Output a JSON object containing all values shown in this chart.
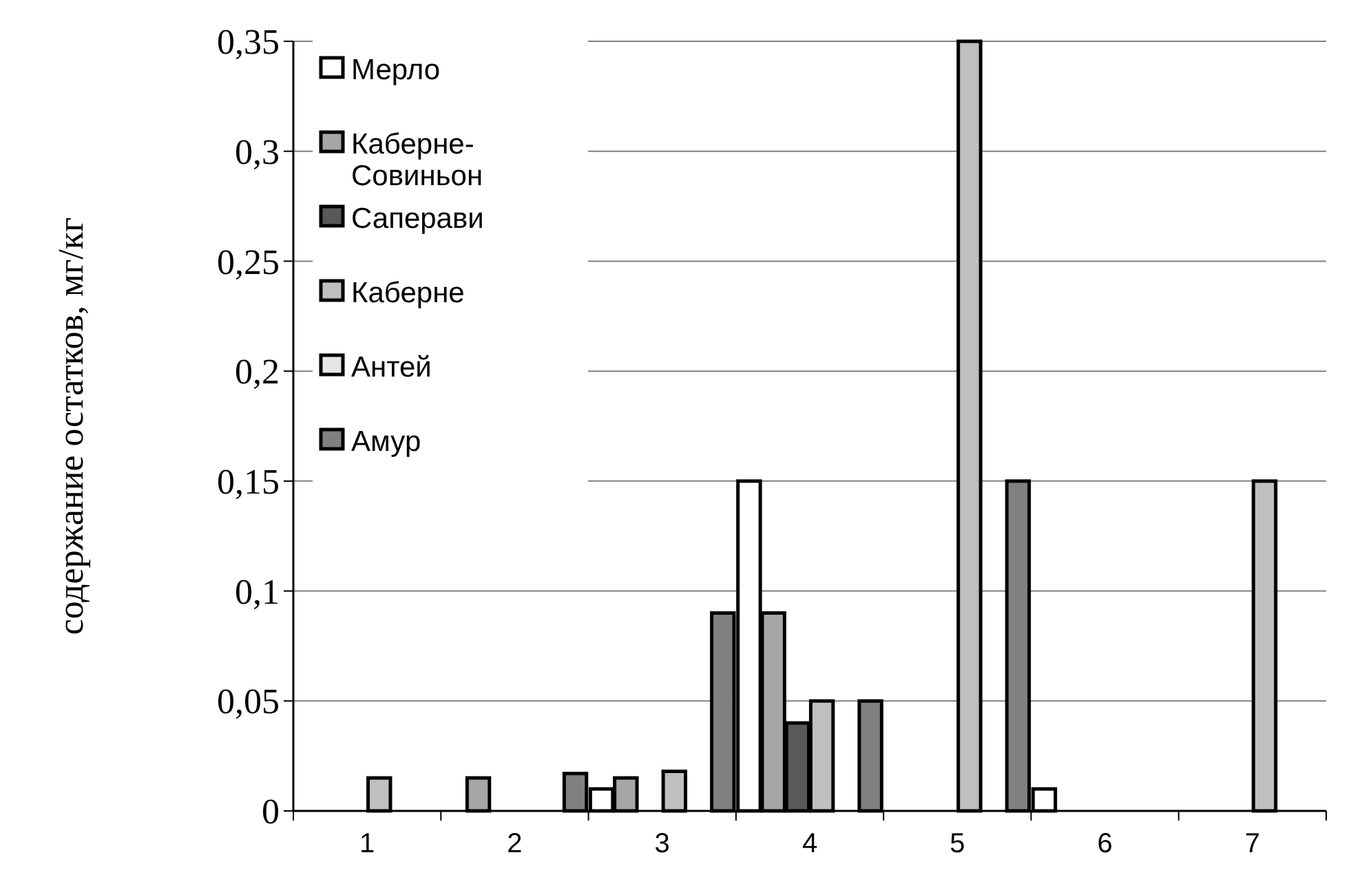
{
  "chart_data": {
    "type": "bar",
    "ylabel": "содержание остатков, мг/кг",
    "categories": [
      "1",
      "2",
      "3",
      "4",
      "5",
      "6",
      "7"
    ],
    "series": [
      {
        "name": "Мерло",
        "color": "#ffffff",
        "values": [
          0,
          0,
          0.01,
          0.15,
          0,
          0.01,
          0
        ]
      },
      {
        "name": "Каберне-Совиньон",
        "color": "#a6a6a6",
        "values": [
          0,
          0.015,
          0.015,
          0.09,
          0,
          0,
          0
        ]
      },
      {
        "name": "Саперави",
        "color": "#595959",
        "values": [
          0,
          0,
          0,
          0.04,
          0,
          0,
          0
        ]
      },
      {
        "name": "Каберне",
        "color": "#bfbfbf",
        "values": [
          0.015,
          0,
          0.018,
          0.05,
          0.35,
          0,
          0.15
        ]
      },
      {
        "name": "Антей",
        "color": "#e6e6e6",
        "values": [
          0,
          0,
          0,
          0,
          0,
          0,
          0
        ]
      },
      {
        "name": "Амур",
        "color": "#808080",
        "values": [
          0,
          0.017,
          0.09,
          0.05,
          0.15,
          0,
          0
        ]
      }
    ],
    "ylim": [
      0,
      0.35
    ],
    "yticks": [
      0,
      {
        "value": 0.05,
        "label": "0,05"
      },
      {
        "value": 0.1,
        "label": "0,1"
      },
      {
        "value": 0.15,
        "label": "0,15"
      },
      {
        "value": 0.2,
        "label": "0,2"
      },
      {
        "value": 0.25,
        "label": "0,25"
      },
      {
        "value": 0.3,
        "label": "0,3"
      },
      {
        "value": 0.35,
        "label": "0,35"
      }
    ],
    "grid": "y",
    "legend": "top left"
  }
}
